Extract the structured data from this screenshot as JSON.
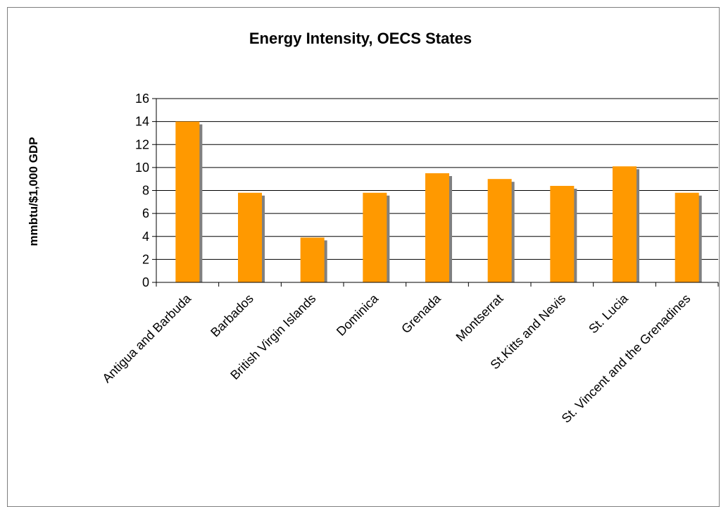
{
  "chart_data": {
    "type": "bar",
    "title": "Energy Intensity, OECS States",
    "xlabel": "",
    "ylabel": "mmbtu/$1,000 GDP",
    "ylim": [
      0,
      16
    ],
    "yticks": [
      0,
      2,
      4,
      6,
      8,
      10,
      12,
      14,
      16
    ],
    "grid": true,
    "legend": "none",
    "categories": [
      "Antigua and Barbuda",
      "Barbados",
      "British Virgin Islands",
      "Dominica",
      "Grenada",
      "Montserrat",
      "St.Kitts and Nevis",
      "St. Lucia",
      "St. Vincent and the Grenadines"
    ],
    "values": [
      14.0,
      7.8,
      3.9,
      7.8,
      9.5,
      9.0,
      8.4,
      10.1,
      7.8
    ],
    "colors": {
      "bar": "#ff9900",
      "shadow": "#808080",
      "grid": "#000000"
    }
  }
}
